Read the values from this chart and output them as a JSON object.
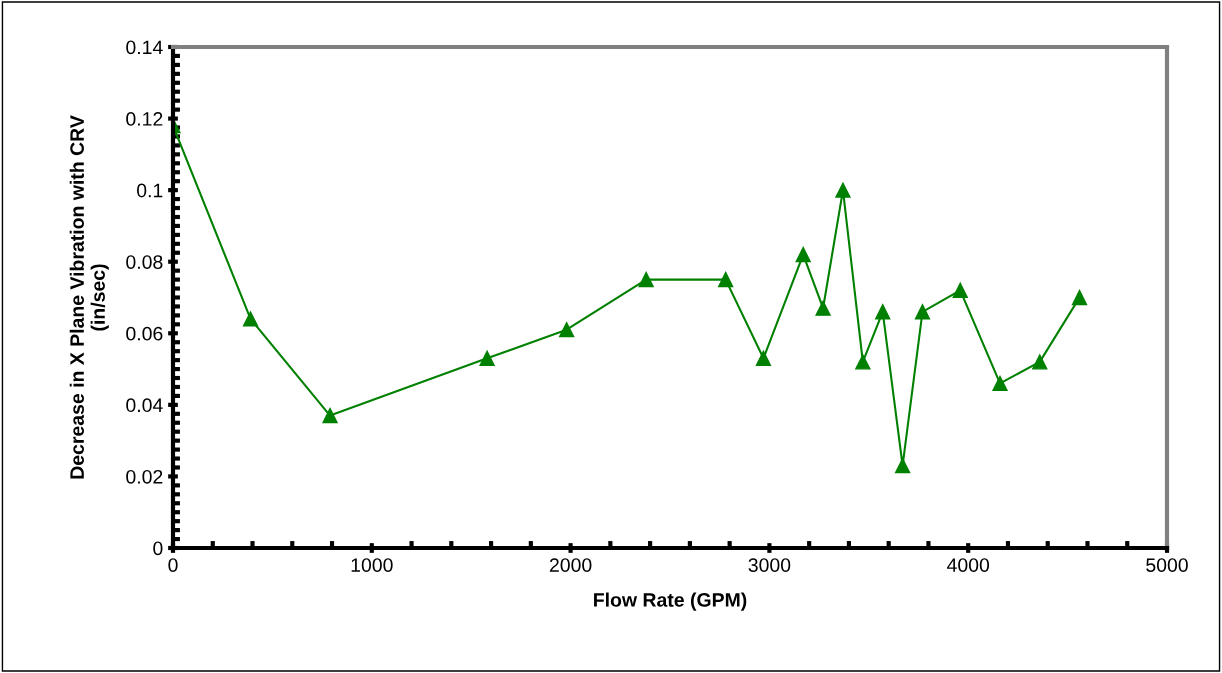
{
  "chart_data": {
    "type": "line",
    "xlabel": "Flow Rate (GPM)",
    "ylabel": "Decrease in X Plane Vibration with CRV\n(in/sec)",
    "x": [
      0,
      390,
      790,
      1580,
      1980,
      2380,
      2780,
      2970,
      3170,
      3270,
      3370,
      3470,
      3570,
      3670,
      3770,
      3960,
      4160,
      4360,
      4560
    ],
    "series": [
      {
        "color": "#008000",
        "values": [
          0.118,
          0.064,
          0.037,
          0.053,
          0.061,
          0.075,
          0.075,
          0.053,
          0.082,
          0.067,
          0.1,
          0.052,
          0.066,
          0.023,
          0.066,
          0.072,
          0.046,
          0.052,
          0.07
        ]
      }
    ],
    "xlim": [
      0,
      5000
    ],
    "xticks": [
      0,
      1000,
      2000,
      3000,
      4000,
      5000
    ],
    "ylim": [
      0,
      0.14
    ],
    "yticks": [
      0,
      0.02,
      0.04,
      0.06,
      0.08,
      0.1,
      0.12,
      0.14
    ],
    "marker": "triangle",
    "line_style": "solid",
    "grid": false,
    "legend": false
  }
}
